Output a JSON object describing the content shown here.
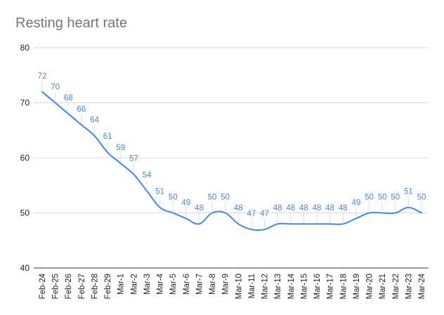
{
  "title": "Resting heart rate",
  "colors": {
    "line": "#4285f4",
    "label": "#4a86e8",
    "grid": "#d9d9d9"
  },
  "chart_data": {
    "type": "line",
    "title": "Resting heart rate",
    "xlabel": "",
    "ylabel": "",
    "ylim": [
      40,
      80
    ],
    "yticks": [
      40,
      50,
      60,
      70,
      80
    ],
    "grid": true,
    "legend": "none",
    "categories": [
      "Feb-24",
      "Feb-25",
      "Feb-26",
      "Feb-27",
      "Feb-28",
      "Feb-29",
      "Mar-1",
      "Mar-2",
      "Mar-3",
      "Mar-4",
      "Mar-5",
      "Mar-6",
      "Mar-7",
      "Mar-8",
      "Mar-9",
      "Mar-10",
      "Mar-11",
      "Mar-12",
      "Mar-13",
      "Mar-14",
      "Mar-15",
      "Mar-16",
      "Mar-17",
      "Mar-18",
      "Mar-19",
      "Mar-20",
      "Mar-21",
      "Mar-22",
      "Mar-23",
      "Mar-24"
    ],
    "series": [
      {
        "values": [
          72,
          70,
          68,
          66,
          64,
          61,
          59,
          57,
          54,
          51,
          50,
          49,
          48,
          50,
          50,
          48,
          47,
          47,
          48,
          48,
          48,
          48,
          48,
          48,
          49,
          50,
          50,
          50,
          51,
          50
        ]
      }
    ]
  }
}
